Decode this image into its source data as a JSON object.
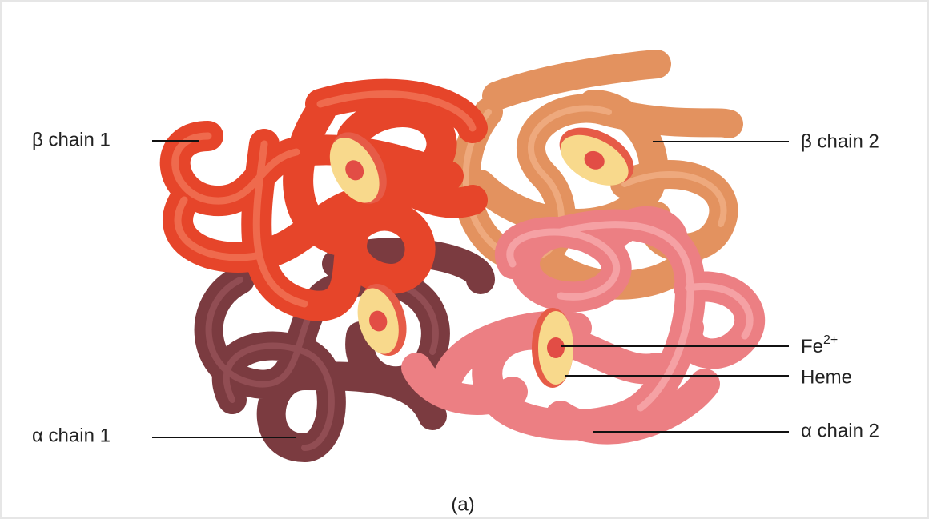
{
  "labels": {
    "beta_chain_1": "β chain 1",
    "beta_chain_2": "β chain 2",
    "iron": {
      "text": "Fe",
      "superscript": "2+"
    },
    "heme": "Heme",
    "alpha_chain_1": "α chain 1",
    "alpha_chain_2": "α chain 2"
  },
  "caption": "(a)"
}
